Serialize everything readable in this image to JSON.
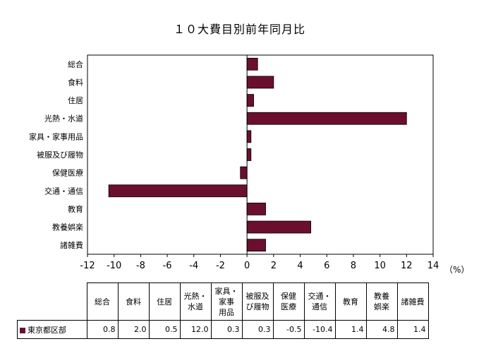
{
  "chart_data": {
    "type": "bar",
    "orientation": "horizontal",
    "title": "１０大費目別前年同月比",
    "unit_label": "（%）",
    "categories": [
      "総合",
      "食料",
      "住居",
      "光熱・水道",
      "家具・家事用品",
      "被服及び履物",
      "保健医療",
      "交通・通信",
      "教育",
      "教養娯楽",
      "諸雑費"
    ],
    "table_headers": [
      "総合",
      "食料",
      "住居",
      "光熱・\n水道",
      "家具・\n家事\n用品",
      "被服及\nび履物",
      "保健\n医療",
      "交通・\n通信",
      "教育",
      "教養\n娯楽",
      "諸雑費"
    ],
    "series": [
      {
        "name": "東京都区部",
        "color": "#6b0f2f",
        "values": [
          0.8,
          2.0,
          0.5,
          12.0,
          0.3,
          0.3,
          -0.5,
          -10.4,
          1.4,
          4.8,
          1.4
        ],
        "value_labels": [
          "0.8",
          "2.0",
          "0.5",
          "12.0",
          "0.3",
          "0.3",
          "-0.5",
          "-10.4",
          "1.4",
          "4.8",
          "1.4"
        ]
      }
    ],
    "xlim": [
      -12,
      14
    ],
    "xticks": [
      "-12",
      "-10",
      "-8",
      "-6",
      "-4",
      "-2",
      "0",
      "2",
      "4",
      "6",
      "8",
      "10",
      "12",
      "14"
    ],
    "grid": false,
    "legend": "in data table"
  }
}
